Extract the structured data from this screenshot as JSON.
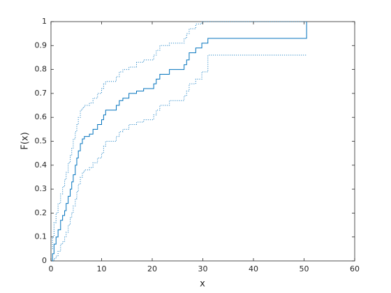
{
  "chart_data": {
    "type": "stairs",
    "xlabel": "x",
    "ylabel": "F(x)",
    "x": [
      0.3,
      0.3,
      0.6,
      1.0,
      1.4,
      1.9,
      2.3,
      2.7,
      3.0,
      3.4,
      3.8,
      4.1,
      4.4,
      4.8,
      5.1,
      5.4,
      5.8,
      6.2,
      6.6,
      7.6,
      8.3,
      9.2,
      10.0,
      10.4,
      10.8,
      12.9,
      13.5,
      14.2,
      15.4,
      16.9,
      18.3,
      20.3,
      20.8,
      21.5,
      23.4,
      26.3,
      26.8,
      27.3,
      28.6,
      29.8,
      31.0,
      50.5
    ],
    "series": [
      {
        "color": "#0072bd",
        "style": "solid",
        "values": [
          0,
          0.03,
          0.07,
          0.1,
          0.13,
          0.17,
          0.19,
          0.21,
          0.24,
          0.27,
          0.3,
          0.33,
          0.36,
          0.4,
          0.43,
          0.46,
          0.49,
          0.51,
          0.52,
          0.53,
          0.55,
          0.57,
          0.59,
          0.61,
          0.63,
          0.65,
          0.67,
          0.68,
          0.7,
          0.71,
          0.72,
          0.74,
          0.76,
          0.78,
          0.8,
          0.82,
          0.84,
          0.87,
          0.89,
          0.91,
          0.93,
          1.0
        ]
      },
      {
        "color": "#0072bd",
        "style": "dotted",
        "values": [
          0.05,
          0.1,
          0.16,
          0.2,
          0.24,
          0.28,
          0.31,
          0.34,
          0.37,
          0.41,
          0.44,
          0.47,
          0.51,
          0.54,
          0.57,
          0.6,
          0.63,
          0.64,
          0.65,
          0.66,
          0.68,
          0.7,
          0.72,
          0.74,
          0.75,
          0.77,
          0.79,
          0.8,
          0.81,
          0.83,
          0.84,
          0.86,
          0.88,
          0.9,
          0.91,
          0.93,
          0.95,
          0.97,
          0.99,
          1.0,
          1.0,
          1.0
        ]
      },
      {
        "color": "#0072bd",
        "style": "dotted",
        "values": [
          0,
          0,
          0.01,
          0.02,
          0.04,
          0.07,
          0.08,
          0.1,
          0.12,
          0.15,
          0.18,
          0.2,
          0.23,
          0.26,
          0.29,
          0.32,
          0.35,
          0.37,
          0.38,
          0.39,
          0.41,
          0.43,
          0.45,
          0.48,
          0.5,
          0.52,
          0.54,
          0.55,
          0.57,
          0.58,
          0.59,
          0.61,
          0.63,
          0.65,
          0.67,
          0.69,
          0.71,
          0.74,
          0.76,
          0.79,
          0.86,
          0.86
        ]
      }
    ],
    "xlim": [
      0,
      60
    ],
    "xticks": [
      0,
      10,
      20,
      30,
      40,
      50,
      60
    ],
    "ylim": [
      0,
      1
    ],
    "yticks": [
      0,
      0.1,
      0.2,
      0.3,
      0.4,
      0.5,
      0.6,
      0.7,
      0.8,
      0.9,
      1
    ]
  }
}
